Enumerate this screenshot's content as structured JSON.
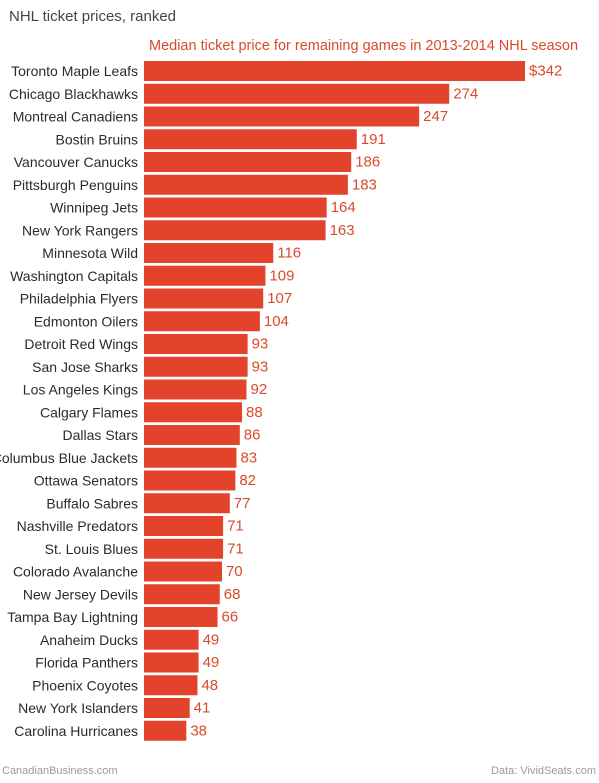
{
  "chart_data": {
    "type": "bar",
    "orientation": "horizontal",
    "title": "NHL ticket prices, ranked",
    "subtitle": "Median ticket price for remaining games in 2013-2014 NHL season",
    "categories": [
      "Toronto Maple Leafs",
      "Chicago Blackhawks",
      "Montreal Canadiens",
      "Bostin Bruins",
      "Vancouver Canucks",
      "Pittsburgh Penguins",
      "Winnipeg Jets",
      "New York Rangers",
      "Minnesota Wild",
      "Washington Capitals",
      "Philadelphia Flyers",
      "Edmonton Oilers",
      "Detroit Red Wings",
      "San Jose Sharks",
      "Los Angeles Kings",
      "Calgary Flames",
      "Dallas Stars",
      "Columbus Blue Jackets",
      "Ottawa Senators",
      "Buffalo Sabres",
      "Nashville Predators",
      "St. Louis Blues",
      "Colorado Avalanche",
      "New Jersey Devils",
      "Tampa Bay Lightning",
      "Anaheim Ducks",
      "Florida Panthers",
      "Phoenix Coyotes",
      "New York Islanders",
      "Carolina Hurricanes"
    ],
    "values": [
      342,
      274,
      247,
      191,
      186,
      183,
      164,
      163,
      116,
      109,
      107,
      104,
      93,
      93,
      92,
      88,
      86,
      83,
      82,
      77,
      71,
      71,
      70,
      68,
      66,
      49,
      49,
      48,
      41,
      38
    ],
    "value_labels": [
      "$342",
      "274",
      "247",
      "191",
      "186",
      "183",
      "164",
      "163",
      "116",
      "109",
      "107",
      "104",
      "93",
      "93",
      "92",
      "88",
      "86",
      "83",
      "82",
      "77",
      "71",
      "71",
      "70",
      "68",
      "66",
      "49",
      "49",
      "48",
      "41",
      "38"
    ],
    "xlim": [
      0,
      342
    ],
    "grid": false,
    "bar_color": "#e2432a",
    "label_color": "#d94a2b"
  },
  "footer": {
    "source_left": "CanadianBusiness.com",
    "source_right": "Data: VividSeats.com"
  }
}
